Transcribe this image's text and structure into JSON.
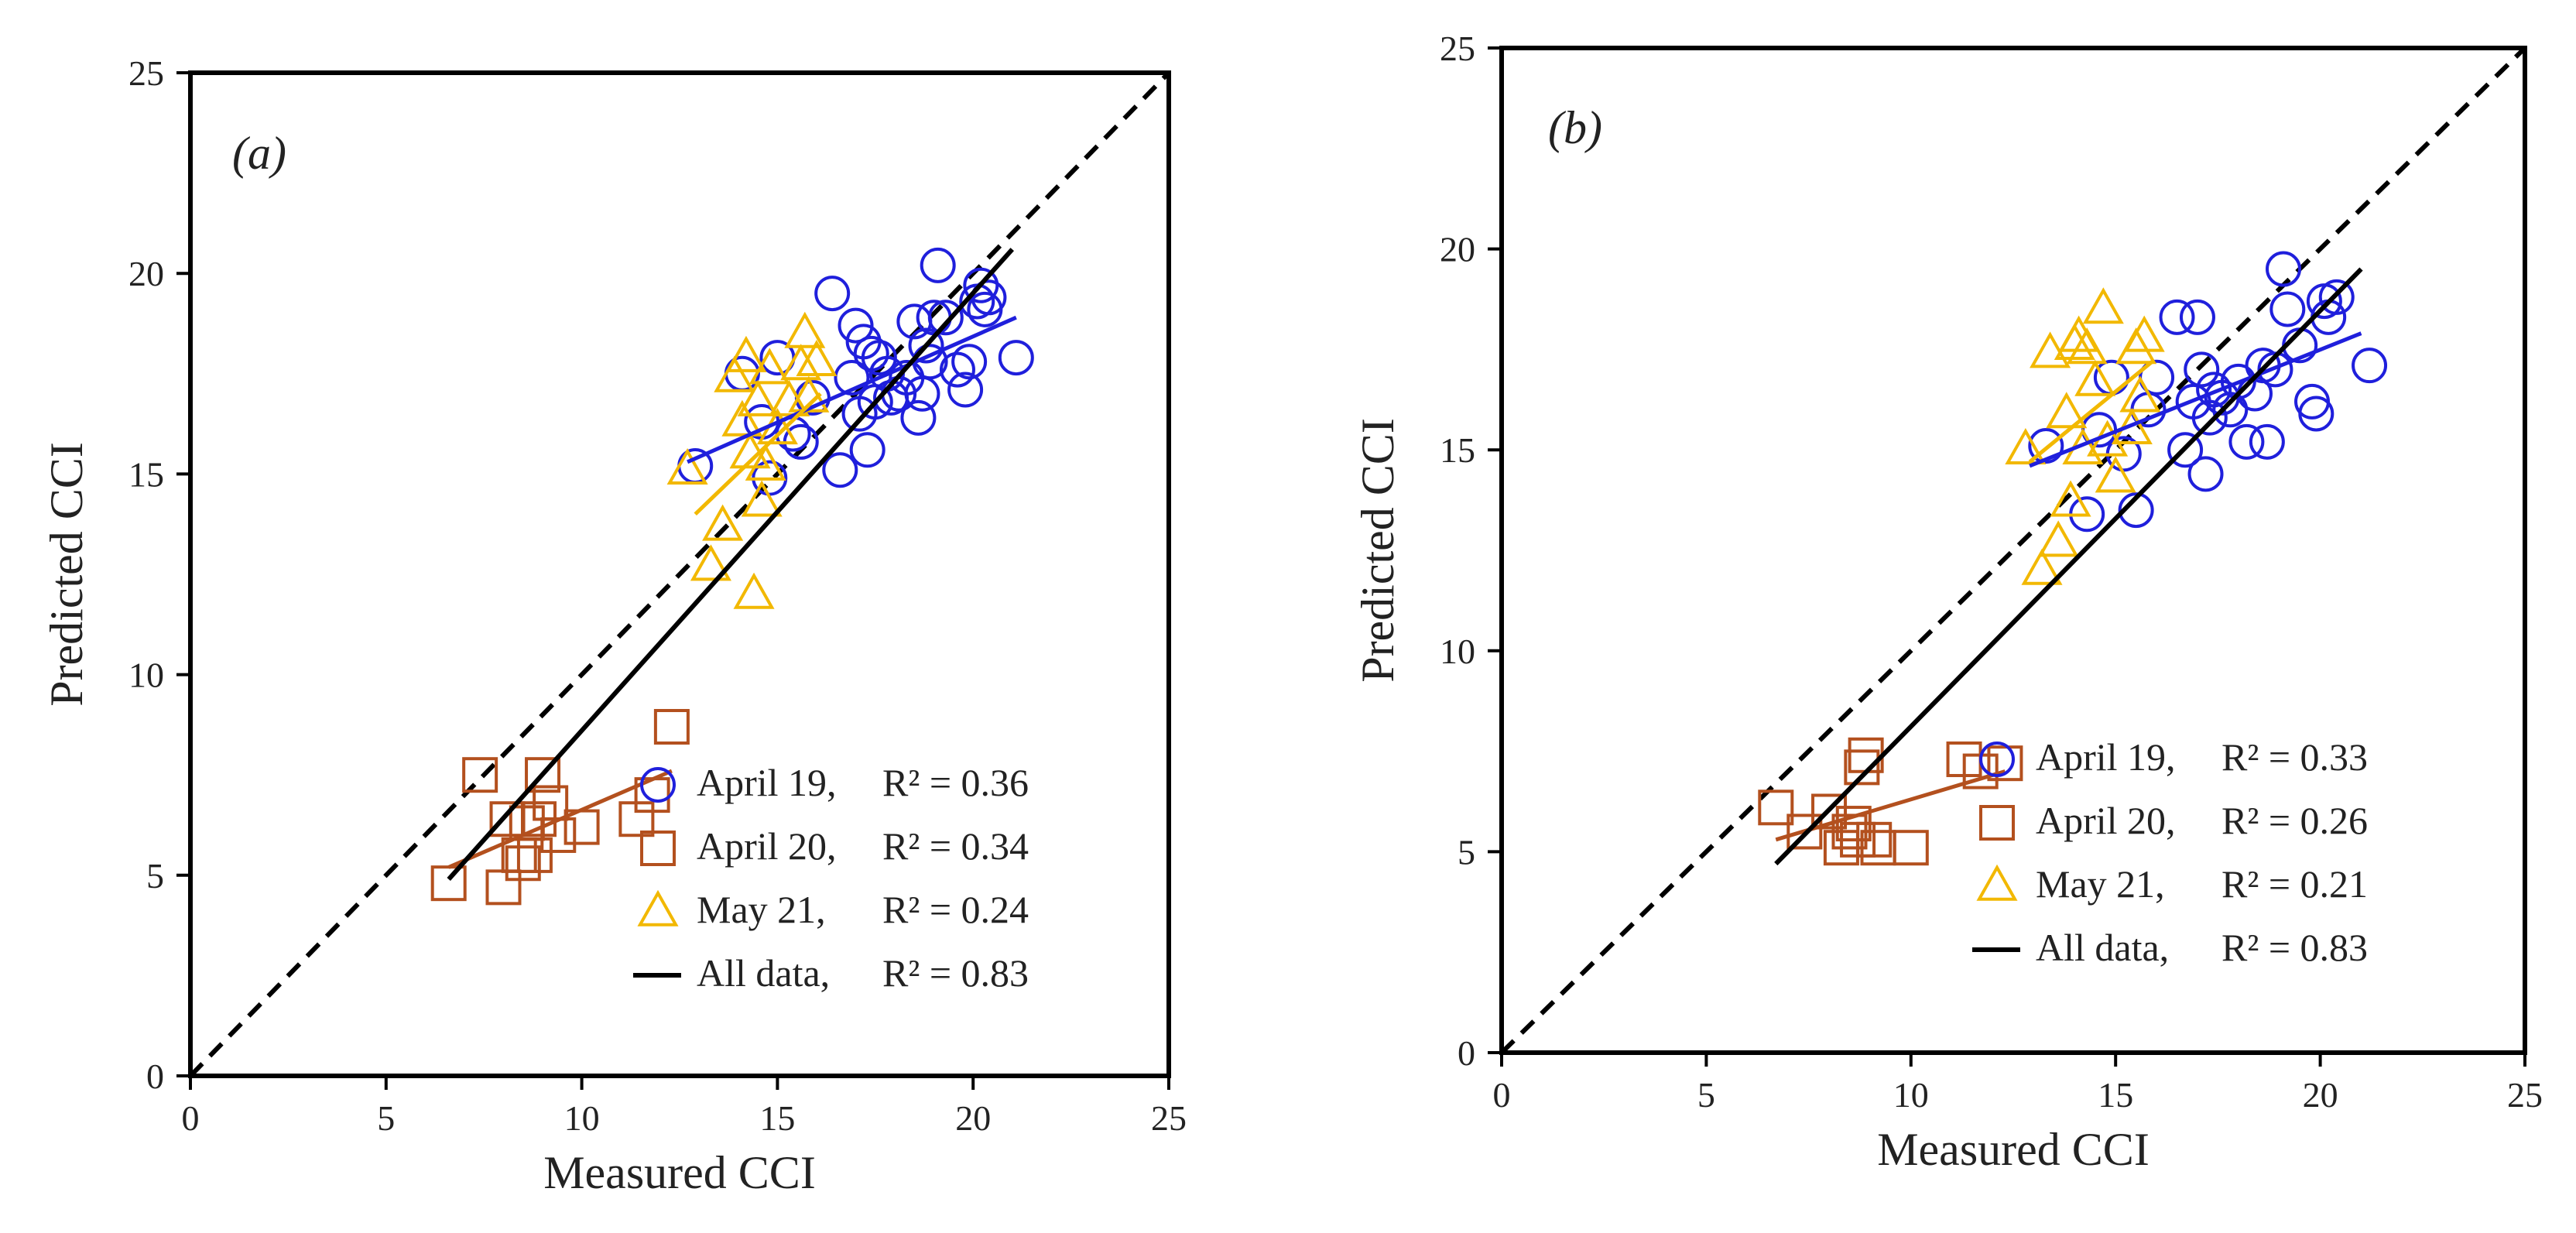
{
  "colors": {
    "april19": "#1f1fdc",
    "april20": "#b3501e",
    "may21": "#f2b800",
    "all": "#000000"
  },
  "chart_data": [
    {
      "type": "scatter",
      "panel_label": "(a)",
      "xlabel": "Measured CCI",
      "ylabel": "Predicted CCI",
      "xlim": [
        0,
        25
      ],
      "ylim": [
        0,
        25
      ],
      "xticks": [
        0,
        5,
        10,
        15,
        20,
        25
      ],
      "yticks": [
        0,
        5,
        10,
        15,
        20,
        25
      ],
      "grid": false,
      "legend_position": "bottom-right",
      "one_to_one_line": true,
      "series": [
        {
          "name": "April 19,",
          "r2": "R² = 0.36",
          "marker": "circle",
          "color": "#1f1fdc",
          "trend": [
            [
              12.7,
              15.3
            ],
            [
              21.1,
              18.9
            ]
          ],
          "x": [
            12.9,
            14.1,
            14.6,
            14.8,
            15.0,
            15.4,
            15.6,
            15.9,
            16.4,
            16.6,
            16.9,
            17.0,
            17.1,
            17.2,
            17.3,
            17.4,
            17.5,
            17.6,
            17.8,
            17.9,
            18.1,
            18.3,
            18.5,
            18.6,
            18.7,
            18.8,
            18.9,
            19.0,
            19.1,
            19.3,
            19.6,
            19.8,
            19.9,
            20.1,
            20.2,
            20.3,
            20.4,
            21.1
          ],
          "y": [
            15.2,
            17.5,
            16.3,
            14.9,
            17.9,
            16.0,
            15.8,
            16.9,
            19.5,
            15.1,
            17.4,
            18.7,
            16.5,
            18.3,
            15.6,
            18.0,
            16.8,
            17.9,
            17.5,
            16.9,
            17.0,
            17.4,
            18.8,
            16.4,
            17.0,
            18.2,
            17.8,
            18.9,
            20.2,
            18.9,
            17.6,
            17.1,
            17.8,
            19.3,
            19.7,
            19.1,
            19.4,
            17.9
          ]
        },
        {
          "name": "April 20,",
          "r2": "R² = 0.34",
          "marker": "square",
          "color": "#b3501e",
          "trend": [
            [
              6.6,
              5.2
            ],
            [
              12.3,
              7.6
            ]
          ],
          "x": [
            6.6,
            7.4,
            8.0,
            8.1,
            8.4,
            8.5,
            8.6,
            8.8,
            8.9,
            9.0,
            9.2,
            9.4,
            10.0,
            11.4,
            11.8,
            12.3
          ],
          "y": [
            4.8,
            7.5,
            4.7,
            6.4,
            5.5,
            5.3,
            6.3,
            5.5,
            6.4,
            7.5,
            6.8,
            6.0,
            6.2,
            6.4,
            7.0,
            8.7
          ]
        },
        {
          "name": "May 21,",
          "r2": "R² = 0.24",
          "marker": "triangle",
          "color": "#f2b800",
          "trend": [
            [
              12.9,
              14.0
            ],
            [
              16.1,
              17.0
            ]
          ],
          "x": [
            12.7,
            13.3,
            13.6,
            13.9,
            14.1,
            14.2,
            14.3,
            14.4,
            14.5,
            14.6,
            14.7,
            14.8,
            15.0,
            15.3,
            15.6,
            15.7,
            15.8,
            16.0
          ],
          "y": [
            15.1,
            12.7,
            13.7,
            17.4,
            16.3,
            17.9,
            15.5,
            12.0,
            16.8,
            14.3,
            15.2,
            17.6,
            16.1,
            16.8,
            17.7,
            18.5,
            16.9,
            17.8
          ]
        },
        {
          "name": "All data,",
          "r2": "R² = 0.83",
          "marker": "line",
          "color": "#000000",
          "trend": [
            [
              6.6,
              4.9
            ],
            [
              21.0,
              20.6
            ]
          ],
          "x": [],
          "y": []
        }
      ]
    },
    {
      "type": "scatter",
      "panel_label": "(b)",
      "xlabel": "Measured CCI",
      "ylabel": "Predicted CCI",
      "xlim": [
        0,
        25
      ],
      "ylim": [
        0,
        25
      ],
      "xticks": [
        0,
        5,
        10,
        15,
        20,
        25
      ],
      "yticks": [
        0,
        5,
        10,
        15,
        20,
        25
      ],
      "grid": false,
      "legend_position": "bottom-right",
      "one_to_one_line": true,
      "series": [
        {
          "name": "April 19,",
          "r2": "R² = 0.33",
          "marker": "circle",
          "color": "#1f1fdc",
          "trend": [
            [
              12.9,
              14.6
            ],
            [
              21.0,
              17.9
            ]
          ],
          "x": [
            13.3,
            14.3,
            14.6,
            14.9,
            15.2,
            15.5,
            15.8,
            16.0,
            16.5,
            16.7,
            16.9,
            17.0,
            17.1,
            17.2,
            17.3,
            17.4,
            17.6,
            17.8,
            18.0,
            18.2,
            18.4,
            18.6,
            18.7,
            18.9,
            19.1,
            19.2,
            19.5,
            19.8,
            19.9,
            20.1,
            20.2,
            20.4,
            21.2
          ],
          "y": [
            15.1,
            13.4,
            15.5,
            16.8,
            14.9,
            13.5,
            16.0,
            16.8,
            18.3,
            15.0,
            16.2,
            18.3,
            17.0,
            14.4,
            15.8,
            16.5,
            16.3,
            16.0,
            16.7,
            15.2,
            16.4,
            17.1,
            15.2,
            17.0,
            19.5,
            18.5,
            17.6,
            16.2,
            15.9,
            18.7,
            18.3,
            18.8,
            17.1
          ]
        },
        {
          "name": "April 20,",
          "r2": "R² = 0.26",
          "marker": "square",
          "color": "#b3501e",
          "trend": [
            [
              6.7,
              5.3
            ],
            [
              12.3,
              7.0
            ]
          ],
          "x": [
            6.7,
            7.4,
            8.0,
            8.3,
            8.5,
            8.6,
            8.7,
            8.8,
            8.9,
            9.1,
            9.2,
            10.0,
            11.3,
            11.7,
            12.3
          ],
          "y": [
            6.1,
            5.5,
            6.0,
            5.1,
            5.5,
            5.7,
            5.3,
            7.1,
            7.4,
            5.3,
            5.1,
            5.1,
            7.3,
            7.0,
            7.2
          ]
        },
        {
          "name": "May 21,",
          "r2": "R² = 0.21",
          "marker": "triangle",
          "color": "#f2b800",
          "trend": [
            [
              12.9,
              14.7
            ],
            [
              15.9,
              17.2
            ]
          ],
          "x": [
            12.8,
            13.2,
            13.4,
            13.6,
            13.8,
            13.9,
            14.0,
            14.1,
            14.2,
            14.3,
            14.5,
            14.7,
            14.8,
            15.0,
            15.4,
            15.5,
            15.6,
            15.7
          ],
          "y": [
            15.0,
            12.0,
            17.4,
            12.7,
            15.9,
            13.7,
            17.6,
            17.8,
            15.0,
            17.5,
            16.7,
            18.5,
            15.2,
            14.3,
            15.5,
            17.5,
            16.3,
            17.8
          ]
        },
        {
          "name": "All data,",
          "r2": "R² = 0.83",
          "marker": "line",
          "color": "#000000",
          "trend": [
            [
              6.7,
              4.7
            ],
            [
              21.0,
              19.5
            ]
          ],
          "x": [],
          "y": []
        }
      ]
    }
  ]
}
